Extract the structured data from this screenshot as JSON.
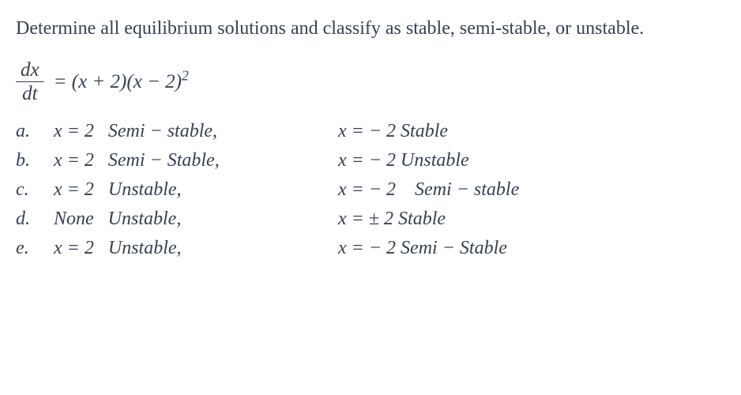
{
  "question": "Determine all equilibrium solutions and classify as stable, semi-stable, or unstable.",
  "equation": {
    "numerator": "dx",
    "denominator": "dt",
    "rhs": "= (x + 2)(x − 2)²"
  },
  "options": [
    {
      "label": "a.",
      "col1_eq": "x = 2",
      "col1_class": "Semi − stable,",
      "col2_eq": "x = − 2",
      "col2_class": "Stable"
    },
    {
      "label": "b.",
      "col1_eq": "x = 2",
      "col1_class": "Semi − Stable,",
      "col2_eq": "x = − 2",
      "col2_class": "Unstable"
    },
    {
      "label": "c.",
      "col1_eq": "x = 2",
      "col1_class": "Unstable,",
      "col2_eq": "x = − 2",
      "col2_class": "Semi − stable"
    },
    {
      "label": "d.",
      "col1_eq": "None",
      "col1_class": "Unstable,",
      "col2_eq": "x = ± 2",
      "col2_class": "Stable"
    },
    {
      "label": "e.",
      "col1_eq": "x = 2",
      "col1_class": "Unstable,",
      "col2_eq": "x = − 2",
      "col2_class": "Semi − Stable"
    }
  ],
  "colors": {
    "text": "#374151",
    "background": "#ffffff"
  },
  "typography": {
    "question_fontsize": 24,
    "equation_fontsize": 25,
    "option_fontsize": 24,
    "font_family": "Georgia, serif",
    "font_style": "normal/italic"
  }
}
